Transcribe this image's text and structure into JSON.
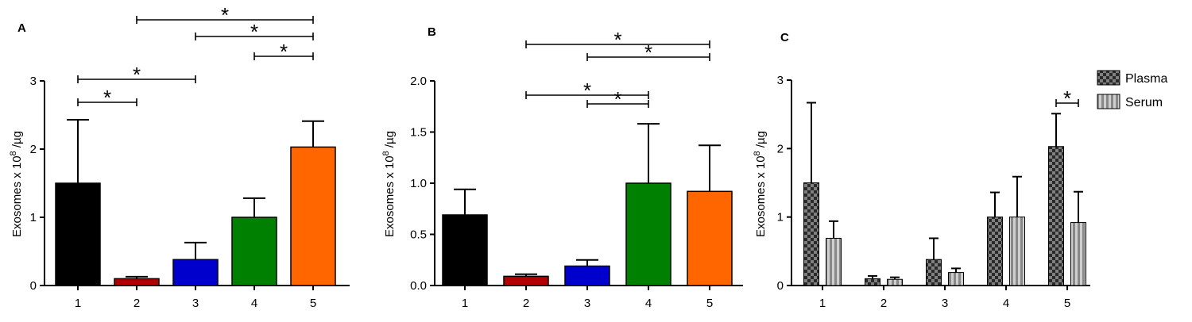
{
  "panels": [
    {
      "label": "A",
      "ylabel_main": "Exosomes x 10",
      "ylabel_sup": "8",
      "ylabel_unit": " /µg",
      "sig_symbol": "*"
    },
    {
      "label": "B",
      "ylabel_main": "Exosomes x 10",
      "ylabel_sup": "8",
      "ylabel_unit": " /µg",
      "sig_symbol": "*"
    },
    {
      "label": "C",
      "ylabel_main": "Exosomes x 10",
      "ylabel_sup": "8",
      "ylabel_unit": " /µg",
      "sig_symbol": "*"
    }
  ],
  "chart_data": [
    {
      "type": "bar",
      "panel": "A",
      "categories": [
        "1",
        "2",
        "3",
        "4",
        "5"
      ],
      "values": [
        1.5,
        0.1,
        0.38,
        1.0,
        2.03
      ],
      "errors": [
        0.93,
        0.03,
        0.25,
        0.28,
        0.38
      ],
      "colors": [
        "#000000",
        "#b00000",
        "#0000cc",
        "#008000",
        "#ff6600"
      ],
      "ylim": [
        0,
        3
      ],
      "yticks": [
        "0",
        "1",
        "2",
        "3"
      ],
      "significance": [
        {
          "from": "1",
          "to": "2"
        },
        {
          "from": "1",
          "to": "3"
        },
        {
          "from": "2",
          "to": "5"
        },
        {
          "from": "3",
          "to": "5"
        },
        {
          "from": "4",
          "to": "5"
        }
      ]
    },
    {
      "type": "bar",
      "panel": "B",
      "categories": [
        "1",
        "2",
        "3",
        "4",
        "5"
      ],
      "values": [
        0.69,
        0.09,
        0.19,
        1.0,
        0.92
      ],
      "errors": [
        0.25,
        0.02,
        0.06,
        0.58,
        0.45
      ],
      "colors": [
        "#000000",
        "#b00000",
        "#0000cc",
        "#008000",
        "#ff6600"
      ],
      "ylim": [
        0,
        2.0
      ],
      "yticks": [
        "0.0",
        "0.5",
        "1.0",
        "1.5",
        "2.0"
      ],
      "significance": [
        {
          "from": "3",
          "to": "4"
        },
        {
          "from": "2",
          "to": "4"
        },
        {
          "from": "3",
          "to": "5"
        },
        {
          "from": "2",
          "to": "5"
        }
      ]
    },
    {
      "type": "bar",
      "panel": "C",
      "categories": [
        "1",
        "2",
        "3",
        "4",
        "5"
      ],
      "series": [
        {
          "name": "Plasma",
          "pattern": "checker",
          "values": [
            1.5,
            0.1,
            0.38,
            1.0,
            2.03
          ],
          "errors": [
            1.17,
            0.04,
            0.31,
            0.36,
            0.48
          ]
        },
        {
          "name": "Serum",
          "pattern": "stripes",
          "values": [
            0.69,
            0.09,
            0.19,
            1.0,
            0.92
          ],
          "errors": [
            0.25,
            0.03,
            0.06,
            0.59,
            0.45
          ]
        }
      ],
      "ylim": [
        0,
        3
      ],
      "yticks": [
        "0",
        "1",
        "2",
        "3"
      ],
      "legend_position": "top-right",
      "significance": [
        {
          "category": "5",
          "between": [
            "Plasma",
            "Serum"
          ]
        }
      ]
    }
  ]
}
